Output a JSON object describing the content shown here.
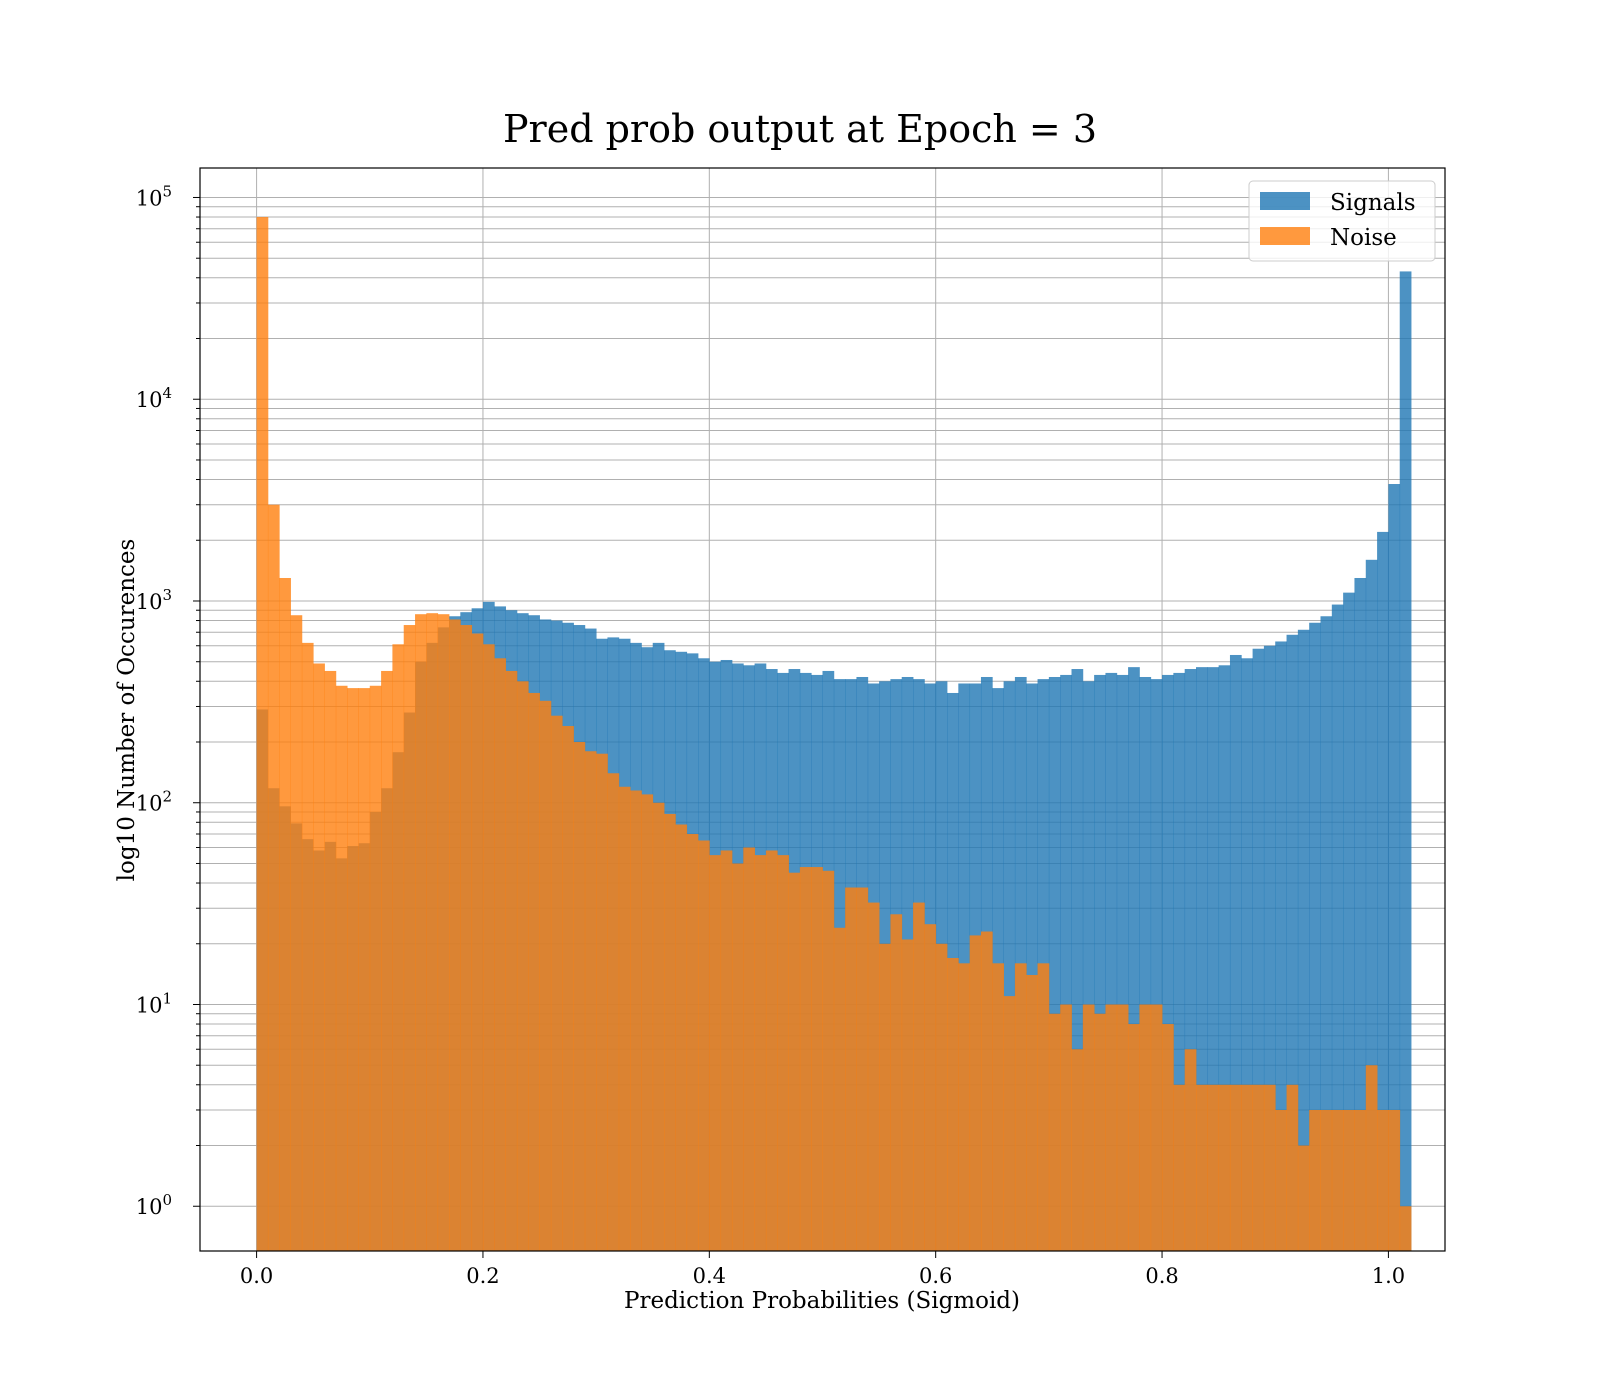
{
  "chart_data": {
    "type": "bar",
    "title": "Pred prob output at Epoch = 3",
    "xlabel": "Prediction Probabilities (Sigmoid)",
    "ylabel": "log10 Number of Occurences",
    "xlim": [
      -0.05,
      1.05
    ],
    "ylim": [
      0.6,
      140000
    ],
    "yscale": "log",
    "grid": true,
    "legend_position": "top-right",
    "x_ticks": [
      {
        "value": 0.0,
        "label": "0.0"
      },
      {
        "value": 0.2,
        "label": "0.2"
      },
      {
        "value": 0.4,
        "label": "0.4"
      },
      {
        "value": 0.6,
        "label": "0.6"
      },
      {
        "value": 0.8,
        "label": "0.8"
      },
      {
        "value": 1.0,
        "label": "1.0"
      }
    ],
    "y_ticks": [
      {
        "value": 1,
        "base": "10",
        "exp": "0"
      },
      {
        "value": 10,
        "base": "10",
        "exp": "1"
      },
      {
        "value": 100,
        "base": "10",
        "exp": "2"
      },
      {
        "value": 1000,
        "base": "10",
        "exp": "3"
      },
      {
        "value": 10000,
        "base": "10",
        "exp": "4"
      },
      {
        "value": 100000,
        "base": "10",
        "exp": "5"
      }
    ],
    "bin_start": 0.0,
    "bin_width": 0.01,
    "series": [
      {
        "name": "Signals",
        "color": "#1f77b4",
        "opacity": 0.8,
        "values": [
          290,
          118,
          96,
          79,
          66,
          58,
          64,
          53,
          61,
          63,
          90,
          118,
          178,
          280,
          500,
          620,
          740,
          840,
          880,
          920,
          990,
          940,
          900,
          870,
          850,
          810,
          800,
          780,
          760,
          730,
          650,
          660,
          650,
          620,
          590,
          620,
          570,
          560,
          550,
          520,
          500,
          510,
          490,
          480,
          490,
          460,
          440,
          460,
          440,
          430,
          450,
          410,
          410,
          420,
          390,
          400,
          410,
          420,
          410,
          390,
          400,
          350,
          390,
          390,
          420,
          370,
          400,
          420,
          390,
          410,
          420,
          430,
          460,
          400,
          430,
          440,
          430,
          470,
          420,
          410,
          430,
          440,
          460,
          470,
          470,
          480,
          540,
          520,
          580,
          600,
          630,
          680,
          720,
          780,
          840,
          960,
          1100,
          1300,
          1600,
          2200,
          3800,
          43000
        ]
      },
      {
        "name": "Noise",
        "color": "#ff7f0e",
        "opacity": 0.8,
        "values": [
          80000,
          3000,
          1300,
          850,
          620,
          490,
          450,
          380,
          370,
          370,
          380,
          450,
          610,
          760,
          860,
          870,
          860,
          810,
          760,
          690,
          610,
          520,
          450,
          400,
          350,
          320,
          270,
          240,
          200,
          180,
          175,
          140,
          120,
          115,
          110,
          100,
          88,
          78,
          70,
          65,
          55,
          58,
          50,
          60,
          55,
          58,
          55,
          45,
          48,
          48,
          46,
          24,
          38,
          38,
          32,
          20,
          28,
          21,
          32,
          25,
          20,
          17,
          16,
          22,
          23,
          16,
          11,
          16,
          14,
          16,
          9,
          10,
          6,
          10,
          9,
          10,
          10,
          8,
          10,
          10,
          8,
          4,
          6,
          4,
          4,
          4,
          4,
          4,
          4,
          4,
          3,
          4,
          2,
          3,
          3,
          3,
          3,
          3,
          5,
          3,
          3,
          1
        ]
      }
    ]
  }
}
